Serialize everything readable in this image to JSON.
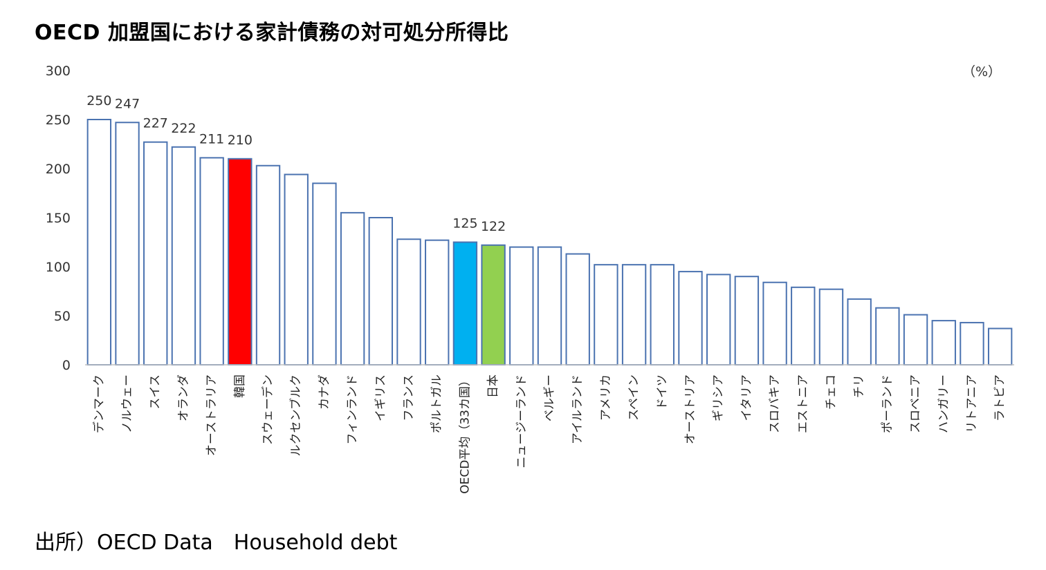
{
  "title": "OECD 加盟国における家計債務の対可処分所得比",
  "source": "出所）OECD Data　Household debt",
  "chart_data": {
    "type": "bar",
    "unit_label": "（%）",
    "ylim": [
      0,
      300
    ],
    "yticks": [
      0,
      50,
      100,
      150,
      200,
      250,
      300
    ],
    "grid": false,
    "categories": [
      "デンマーク",
      "ノルウェー",
      "スイス",
      "オランダ",
      "オーストラリア",
      "韓国",
      "スウェーデン",
      "ルクセンブルク",
      "カナダ",
      "フィンランド",
      "イギリス",
      "フランス",
      "ポルトガル",
      "OECD平均（33カ国）",
      "日本",
      "ニュージーランド",
      "ベルギー",
      "アイルランド",
      "アメリカ",
      "スペイン",
      "ドイツ",
      "オーストリア",
      "ギリシア",
      "イタリア",
      "スロバキア",
      "エストニア",
      "チェコ",
      "チリ",
      "ポーランド",
      "スロベニア",
      "ハンガリー",
      "リトアニア",
      "ラトビア"
    ],
    "values": [
      250,
      247,
      227,
      222,
      211,
      210,
      203,
      194,
      185,
      155,
      150,
      128,
      127,
      125,
      122,
      120,
      120,
      113,
      102,
      102,
      102,
      95,
      92,
      90,
      84,
      79,
      77,
      67,
      58,
      51,
      45,
      43,
      37
    ],
    "data_labels": {
      "0": "250",
      "1": "247",
      "2": "227",
      "3": "222",
      "4": "211",
      "5": "210",
      "13": "125",
      "14": "122"
    },
    "colors": {
      "default_fill": "#ffffff",
      "outline": "#4a72b0",
      "highlight": {
        "5": "#ff0000",
        "13": "#00b0f0",
        "14": "#92d050"
      }
    }
  }
}
